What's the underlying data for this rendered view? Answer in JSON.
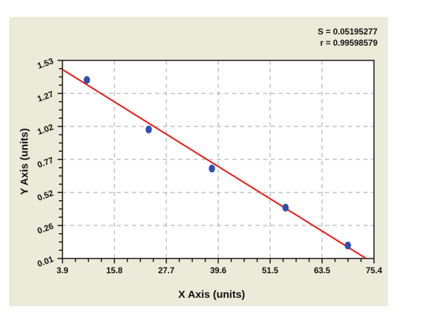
{
  "chart_data": {
    "type": "scatter",
    "title": "",
    "xlabel": "X Axis (units)",
    "ylabel": "Y Axis (units)",
    "xlim": [
      3.9,
      75.4
    ],
    "ylim": [
      0.01,
      1.53
    ],
    "x_ticks": [
      "3.9",
      "15.8",
      "27.7",
      "39.6",
      "51.5",
      "63.5",
      "75.4"
    ],
    "y_ticks": [
      "0.01",
      "0.26",
      "0.52",
      "0.77",
      "1.02",
      "1.27",
      "1.53"
    ],
    "grid": true,
    "series": [
      {
        "name": "data points",
        "type": "scatter",
        "color": "#2f4fb0",
        "x": [
          9.5,
          23.7,
          38.2,
          55.1,
          69.4
        ],
        "y": [
          1.38,
          1.0,
          0.7,
          0.4,
          0.11
        ]
      },
      {
        "name": "fit line",
        "type": "line",
        "color": "#e8231e",
        "x": [
          3.9,
          73.6
        ],
        "y": [
          1.46,
          0.01
        ]
      }
    ],
    "annotations": [
      "S = 0.05195277",
      "r = 0.99598579"
    ]
  },
  "stats": {
    "s_label": "S = 0.05195277",
    "r_label": "r = 0.99598579"
  },
  "colors": {
    "panel_bg": "#ecead8",
    "plot_bg": "#ffffff",
    "grid": "#a0a0a0",
    "point": "#2f4fb0",
    "fit_line": "#e8231e"
  }
}
